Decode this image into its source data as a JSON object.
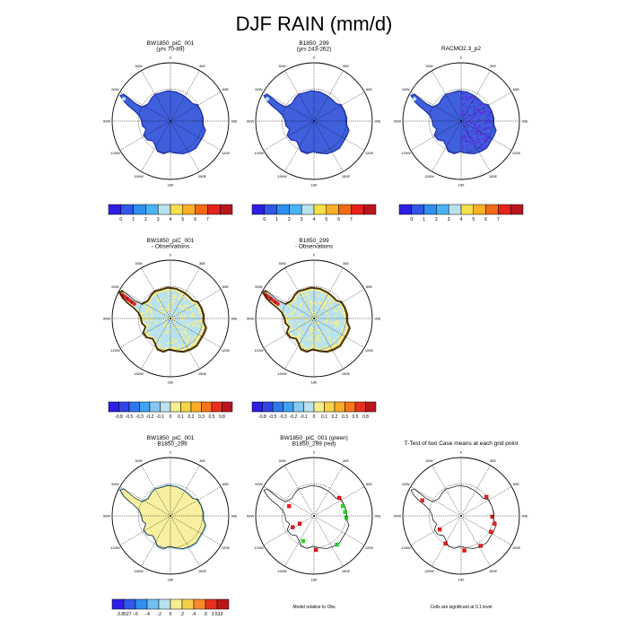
{
  "title": "DJF RAIN (mm/d)",
  "chart_data": {
    "type": "heatmap",
    "title": "DJF RAIN (mm/d)",
    "projection": "south polar stereographic",
    "panels": [
      {
        "id": "p1",
        "title_lines": [
          "BW1850_piC_001",
          "(yrs 70-89)"
        ],
        "field": "low",
        "mean_fill": "#3f5fdc",
        "speckle": false
      },
      {
        "id": "p2",
        "title_lines": [
          "B1850_299",
          "(yrs 243-262)"
        ],
        "field": "low",
        "mean_fill": "#3f5fdc",
        "speckle": false
      },
      {
        "id": "p3",
        "title_lines": [
          "RACMO2.3_p2"
        ],
        "field": "low",
        "mean_fill": "#3f5fdc",
        "speckle": true
      },
      {
        "id": "p4",
        "title_lines": [
          "BW1850_piC_001",
          "- Observations"
        ],
        "field": "diff",
        "mean_fill": "#b9e2ef",
        "speckle": true
      },
      {
        "id": "p5",
        "title_lines": [
          "B1850_299",
          "- Observations"
        ],
        "field": "diff",
        "mean_fill": "#b9e2ef",
        "speckle": true
      },
      {
        "id": "p6",
        "title_lines": [
          "BW1850_piC_001",
          "- B1850_299"
        ],
        "field": "diff2",
        "mean_fill": "#f7f0a0",
        "speckle": false
      },
      {
        "id": "p7",
        "title_lines": [
          "BW1850_piC_001 (green)",
          "B1850_299 (red)"
        ],
        "field": "compare",
        "mean_fill": "#ffffff",
        "speckle": false
      },
      {
        "id": "p8",
        "title_lines": [
          "T-Test of two Case means at each grid point"
        ],
        "field": "ttest",
        "mean_fill": "#ffffff",
        "speckle": false
      }
    ],
    "longitude_labels": [
      "0",
      "30E",
      "60E",
      "90E",
      "120E",
      "150E",
      "180",
      "150W",
      "120W",
      "90W",
      "60W",
      "30W"
    ],
    "colorbars": [
      {
        "id": "cb1",
        "labels": [
          "0",
          "1",
          "2",
          "3",
          "4",
          "5",
          "6",
          "7"
        ],
        "colors": [
          "#2d1ee6",
          "#2f58e8",
          "#2f8ff0",
          "#48b4f4",
          "#b9e2ef",
          "#f6df4a",
          "#fcb024",
          "#f56a16",
          "#e5231c",
          "#b8161c"
        ]
      },
      {
        "id": "cb2",
        "labels": [
          "0",
          "1",
          "2",
          "3",
          "4",
          "5",
          "6",
          "7"
        ],
        "colors": [
          "#2d1ee6",
          "#2f58e8",
          "#2f8ff0",
          "#48b4f4",
          "#b9e2ef",
          "#f6df4a",
          "#fcb024",
          "#f56a16",
          "#e5231c",
          "#b8161c"
        ]
      },
      {
        "id": "cb3",
        "labels": [
          "0",
          "1",
          "2",
          "3",
          "4",
          "5",
          "6",
          "7"
        ],
        "colors": [
          "#2d1ee6",
          "#2f58e8",
          "#2f8ff0",
          "#48b4f4",
          "#b9e2ef",
          "#f6df4a",
          "#fcb024",
          "#f56a16",
          "#e5231c",
          "#b8161c"
        ]
      },
      {
        "id": "cb4",
        "labels": [
          "-0.8",
          "-0.5",
          "-0.3",
          "-0.2",
          "-0.1",
          "0",
          "0.1",
          "0.2",
          "0.3",
          "0.5",
          "0.8"
        ],
        "colors": [
          "#2d1ee6",
          "#2f45e6",
          "#2f78ec",
          "#3fa2f2",
          "#86c9f0",
          "#b9e2ef",
          "#f6ee8c",
          "#f6d24a",
          "#fcab24",
          "#f5751a",
          "#e5301c",
          "#b8161c"
        ]
      },
      {
        "id": "cb5",
        "labels": [
          "-0.8",
          "-0.5",
          "-0.3",
          "-0.2",
          "-0.1",
          "0",
          "0.1",
          "0.2",
          "0.3",
          "0.5",
          "0.8"
        ],
        "colors": [
          "#2d1ee6",
          "#2f45e6",
          "#2f78ec",
          "#3fa2f2",
          "#86c9f0",
          "#b9e2ef",
          "#f6ee8c",
          "#f6d24a",
          "#fcab24",
          "#f5751a",
          "#e5301c",
          "#b8161c"
        ]
      },
      {
        "id": "cb6",
        "labels": [
          "-3.8527",
          "-.6",
          "-.4",
          "-.2",
          "0",
          ".2",
          ".4",
          ".6",
          "3.533"
        ],
        "colors": [
          "#2d1ee6",
          "#2f5ae8",
          "#2f8ff0",
          "#6fc0f0",
          "#b9e2ef",
          "#f6ee8c",
          "#f6cf4a",
          "#f7892a",
          "#e5301c",
          "#b8161c"
        ]
      }
    ],
    "notes": {
      "p7": "Model relative to Obs",
      "p8": "Cells are significant at 0.1 level"
    },
    "colors": {
      "land_outline": "#000000",
      "green": "#1fcf1f",
      "red": "#e01010"
    }
  }
}
